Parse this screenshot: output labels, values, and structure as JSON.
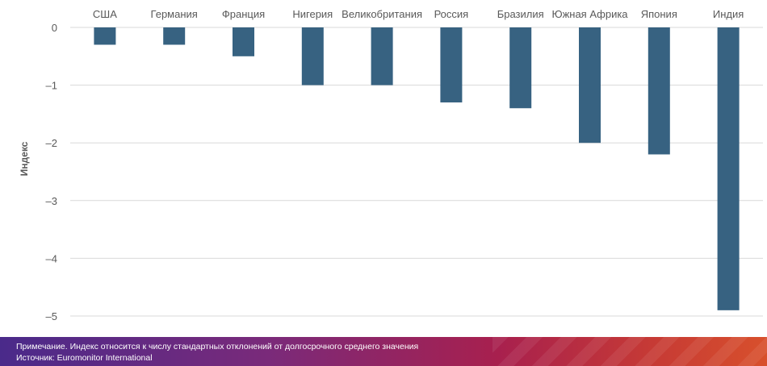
{
  "chart_data": {
    "type": "bar",
    "categories": [
      "США",
      "Германия",
      "Франция",
      "Нигерия",
      "Великобритания",
      "Россия",
      "Бразилия",
      "Южная Африка",
      "Япония",
      "Индия"
    ],
    "values": [
      -0.3,
      -0.3,
      -0.5,
      -1.0,
      -1.0,
      -1.3,
      -1.4,
      -2.0,
      -2.2,
      -4.9
    ],
    "ylabel": "Индекс",
    "xlabel": "",
    "ylim": [
      -5,
      0
    ],
    "yticks": [
      "0",
      "–1",
      "–2",
      "–3",
      "–4",
      "–5"
    ],
    "grid": true,
    "bar_color": "#376281"
  },
  "footer": {
    "note": "Примечание. Индекс относится к числу стандартных отклонений от долгосрочного среднего значения",
    "source": "Источник: Euromonitor International"
  }
}
